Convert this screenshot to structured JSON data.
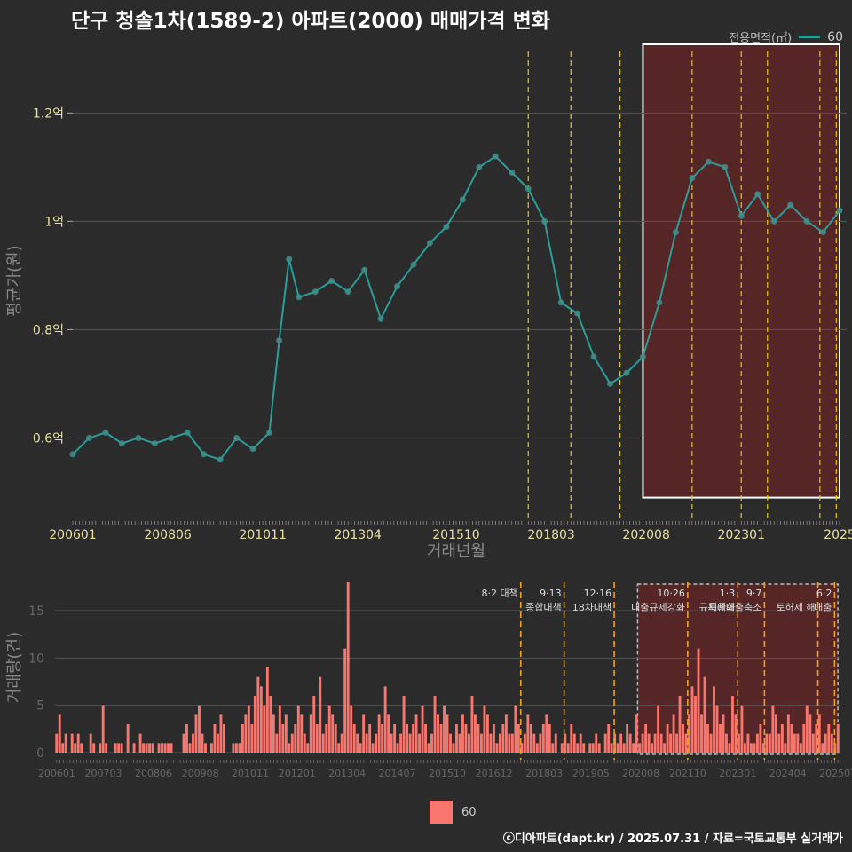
{
  "title": "단구 청솔1차(1589-2) 아파트(2000) 매매가격 변화",
  "legend_top": {
    "title": "전용면적(㎡)",
    "value": "60",
    "color": "#2a9d9a"
  },
  "legend_bottom": {
    "value": "60",
    "color": "#f8766d"
  },
  "footer": "ⓒ디아파트(dapt.kr) / 2025.07.31 / 자료=국토교통부 실거래가",
  "colors": {
    "background": "#2b2b2b",
    "line": "#2a9d9a",
    "bar": "#f8766d",
    "policy_line": "#e6c619",
    "highlight": "#7a2020"
  },
  "chart_data": [
    {
      "type": "line",
      "ylabel": "평균가(원)",
      "xlabel": "거래년월",
      "yticks": [
        {
          "value": 0.6,
          "label": "0.6억"
        },
        {
          "value": 0.8,
          "label": "0.8억"
        },
        {
          "value": 1.0,
          "label": "1억"
        },
        {
          "value": 1.2,
          "label": "1.2억"
        }
      ],
      "ylim": [
        0.45,
        1.33
      ],
      "xticks": [
        "200601",
        "200806",
        "201011",
        "201304",
        "201510",
        "201803",
        "202008",
        "202301",
        "2025"
      ],
      "highlight_period": [
        "2020-07",
        "2025-07"
      ],
      "policy_dates": [
        "2017-08",
        "2018-09",
        "2019-12",
        "2021-10",
        "2023-01",
        "2023-09",
        "2025-01",
        "2025-06"
      ],
      "series": [
        {
          "name": "60",
          "x": [
            "2006-01",
            "2006-06",
            "2006-11",
            "2007-04",
            "2007-09",
            "2008-02",
            "2008-07",
            "2008-12",
            "2009-05",
            "2009-10",
            "2010-03",
            "2010-08",
            "2011-01",
            "2011-04",
            "2011-07",
            "2011-10",
            "2012-03",
            "2012-08",
            "2013-01",
            "2013-06",
            "2013-11",
            "2014-04",
            "2014-09",
            "2015-02",
            "2015-07",
            "2015-12",
            "2016-05",
            "2016-10",
            "2017-03",
            "2017-08",
            "2018-01",
            "2018-06",
            "2018-11",
            "2019-04",
            "2019-09",
            "2020-02",
            "2020-07",
            "2020-12",
            "2021-05",
            "2021-10",
            "2022-03",
            "2022-08",
            "2023-01",
            "2023-06",
            "2023-11",
            "2024-04",
            "2024-09",
            "2025-02",
            "2025-07"
          ],
          "y": [
            0.57,
            0.6,
            0.61,
            0.59,
            0.6,
            0.59,
            0.6,
            0.61,
            0.57,
            0.56,
            0.6,
            0.58,
            0.61,
            0.78,
            0.93,
            0.86,
            0.87,
            0.89,
            0.87,
            0.91,
            0.82,
            0.88,
            0.92,
            0.96,
            0.99,
            1.04,
            1.1,
            1.12,
            1.09,
            1.06,
            1.0,
            0.85,
            0.83,
            0.75,
            0.7,
            0.72,
            0.75,
            0.85,
            0.98,
            1.08,
            1.11,
            1.1,
            1.01,
            1.05,
            1.0,
            1.03,
            1.0,
            0.98,
            1.02
          ]
        }
      ]
    },
    {
      "type": "bar",
      "ylabel": "거래량(건)",
      "yticks": [
        0,
        5,
        10,
        15
      ],
      "ylim": [
        0,
        18
      ],
      "xticks": [
        "200601",
        "200703",
        "200806",
        "200908",
        "201011",
        "201201",
        "201304",
        "201407",
        "201510",
        "201612",
        "201803",
        "201905",
        "202008",
        "202110",
        "202301",
        "202404",
        "202507"
      ],
      "policy_annotations": [
        {
          "date": "2017-08",
          "line1": "8·2 대책",
          "line2": ""
        },
        {
          "date": "2018-09",
          "line1": "9·13",
          "line2": "종합대책"
        },
        {
          "date": "2019-12",
          "line1": "12·16",
          "line2": "18차대책"
        },
        {
          "date": "2021-10",
          "line1": "10·26",
          "line2": "대출규제강화"
        },
        {
          "date": "2023-01",
          "line1": "1·3",
          "line2": "규제완화"
        },
        {
          "date": "2023-09",
          "line1": "9·7",
          "line2": "특례대출축소"
        },
        {
          "date": "2025-01",
          "line1": "",
          "line2": "토허제 해"
        },
        {
          "date": "2025-06",
          "line1": "6·2",
          "line2": "대출"
        }
      ],
      "series": [
        {
          "name": "60",
          "counts": [
            2,
            4,
            1,
            2,
            0,
            2,
            1,
            2,
            1,
            0,
            0,
            2,
            1,
            0,
            1,
            5,
            1,
            0,
            0,
            1,
            1,
            1,
            0,
            3,
            0,
            1,
            0,
            2,
            1,
            1,
            1,
            1,
            0,
            1,
            1,
            1,
            1,
            1,
            0,
            0,
            0,
            2,
            3,
            1,
            2,
            4,
            5,
            2,
            1,
            0,
            1,
            3,
            2,
            4,
            3,
            0,
            0,
            1,
            1,
            1,
            3,
            4,
            5,
            3,
            6,
            8,
            7,
            5,
            9,
            6,
            4,
            2,
            5,
            3,
            4,
            1,
            2,
            3,
            5,
            4,
            2,
            1,
            4,
            6,
            3,
            8,
            2,
            3,
            5,
            4,
            3,
            1,
            2,
            11,
            18,
            5,
            3,
            2,
            1,
            4,
            2,
            3,
            1,
            2,
            4,
            3,
            7,
            4,
            2,
            3,
            1,
            2,
            6,
            3,
            2,
            3,
            4,
            2,
            5,
            3,
            1,
            2,
            6,
            4,
            3,
            5,
            4,
            2,
            1,
            3,
            2,
            4,
            3,
            2,
            6,
            4,
            3,
            2,
            5,
            4,
            2,
            3,
            1,
            2,
            3,
            4,
            2,
            2,
            5,
            3,
            1,
            2,
            4,
            3,
            2,
            1,
            2,
            3,
            4,
            3,
            1,
            2,
            0,
            1,
            2,
            1,
            3,
            2,
            1,
            2,
            1,
            0,
            1,
            1,
            2,
            1,
            0,
            2,
            3,
            1,
            2,
            1,
            2,
            1,
            3,
            2,
            1,
            4,
            1,
            2,
            3,
            2,
            1,
            2,
            5,
            2,
            1,
            3,
            2,
            4,
            2,
            6,
            3,
            2,
            4,
            7,
            6,
            11,
            4,
            8,
            3,
            2,
            7,
            5,
            3,
            4,
            2,
            1,
            6,
            4,
            2,
            5,
            1,
            2,
            1,
            1,
            2,
            3,
            1,
            2,
            2,
            5,
            4,
            2,
            3,
            1,
            4,
            3,
            2,
            2,
            1,
            3,
            5,
            4,
            2,
            3,
            4,
            1,
            2,
            3,
            2,
            1,
            3
          ]
        }
      ]
    }
  ]
}
